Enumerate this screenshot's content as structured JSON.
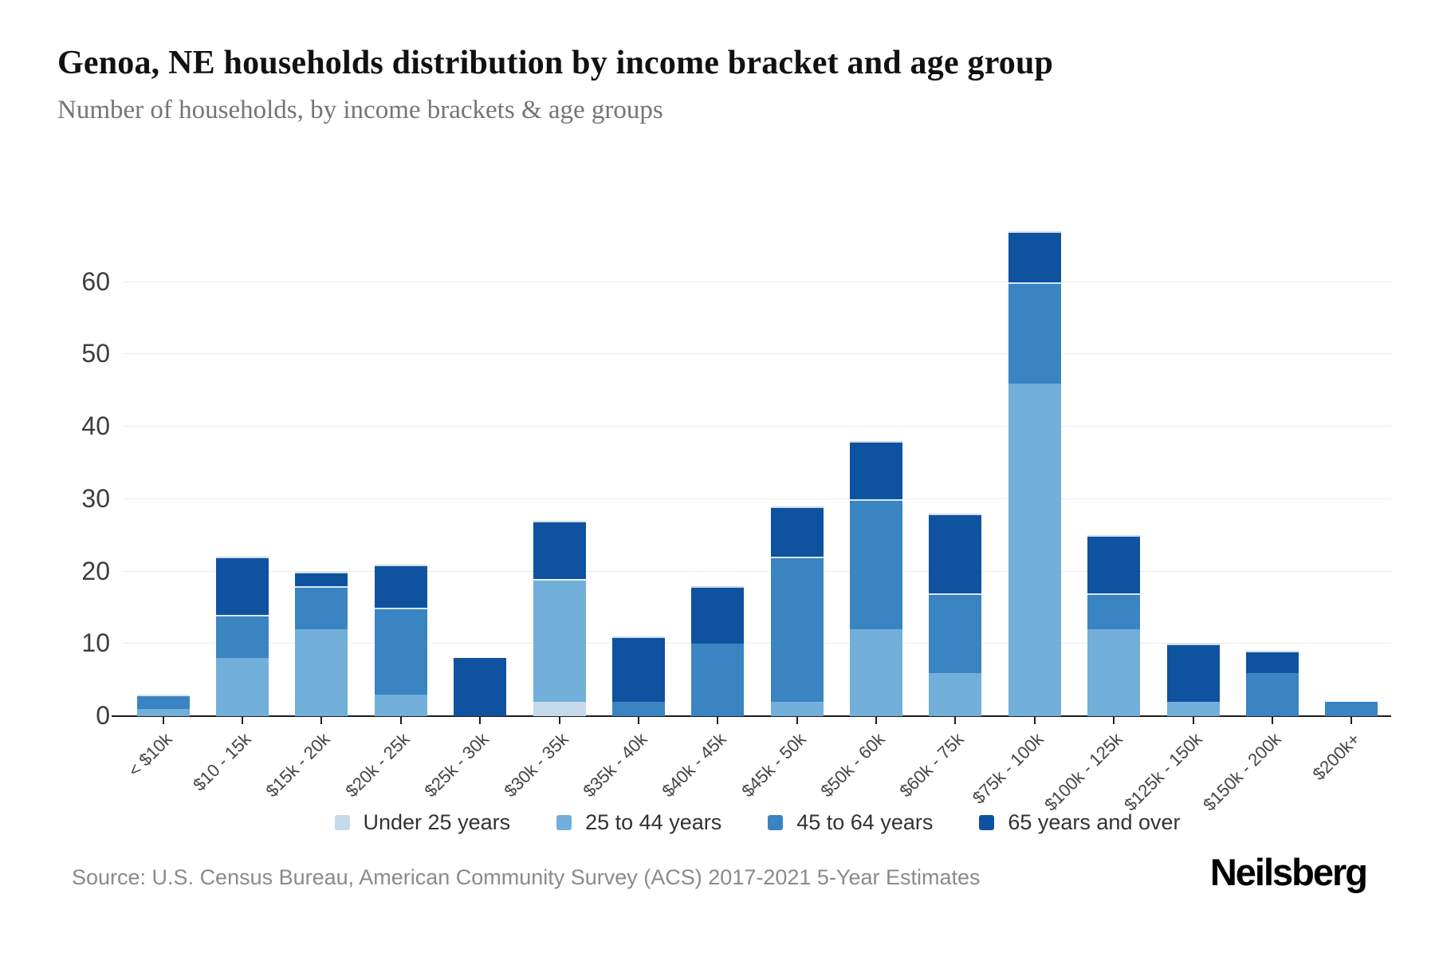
{
  "header": {
    "title": "Genoa, NE households distribution by income bracket and age group",
    "subtitle": "Number of households, by income brackets & age groups"
  },
  "chart_data": {
    "type": "bar",
    "stacked": true,
    "title": "Genoa, NE households distribution by income bracket and age group",
    "xlabel": "",
    "ylabel": "",
    "categories": [
      "< $10k",
      "$10 - 15k",
      "$15k - 20k",
      "$20k - 25k",
      "$25k - 30k",
      "$30k - 35k",
      "$35k - 40k",
      "$40k - 45k",
      "$45k - 50k",
      "$50k - 60k",
      "$60k - 75k",
      "$75k - 100k",
      "$100k - 125k",
      "$125k - 150k",
      "$150k - 200k",
      "$200k+"
    ],
    "series": [
      {
        "name": "Under 25 years",
        "color": "#c5d9ea",
        "values": [
          0,
          0,
          0,
          0,
          0,
          2,
          0,
          0,
          0,
          0,
          0,
          0,
          0,
          0,
          0,
          0
        ]
      },
      {
        "name": "25 to 44 years",
        "color": "#72afda",
        "values": [
          1,
          8,
          12,
          3,
          0,
          17,
          0,
          0,
          2,
          12,
          6,
          46,
          12,
          2,
          0,
          0
        ]
      },
      {
        "name": "45 to 64 years",
        "color": "#3a84c2",
        "values": [
          2,
          6,
          6,
          12,
          0,
          0,
          2,
          10,
          20,
          18,
          11,
          14,
          5,
          0,
          6,
          2
        ]
      },
      {
        "name": "65 years and over",
        "color": "#0e52a0",
        "values": [
          0,
          8,
          2,
          6,
          8,
          8,
          9,
          8,
          7,
          8,
          11,
          7,
          8,
          8,
          3,
          0
        ]
      }
    ],
    "totals": [
      3,
      22,
      20,
      21,
      8,
      27,
      11,
      18,
      29,
      38,
      28,
      67,
      25,
      10,
      9,
      2
    ],
    "y_ticks": [
      0,
      10,
      20,
      30,
      40,
      50,
      60
    ],
    "ymax": 70,
    "grid": true,
    "legend_position": "bottom"
  },
  "footer": {
    "source": "Source: U.S. Census Bureau, American Community Survey (ACS) 2017-2021 5-Year Estimates",
    "brand": "Neilsberg"
  }
}
